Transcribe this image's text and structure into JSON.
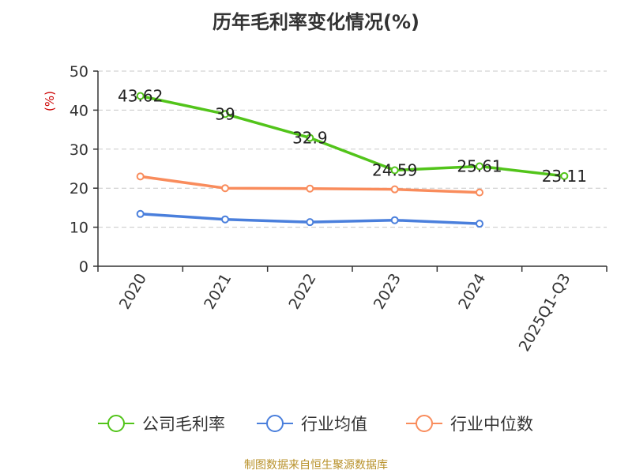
{
  "chart_data": {
    "type": "line",
    "title": "历年毛利率变化情况(%)",
    "ylabel": "(%)",
    "categories": [
      "2020",
      "2021",
      "2022",
      "2023",
      "2024",
      "2025Q1-Q3"
    ],
    "ylim": [
      0,
      50
    ],
    "yticks": [
      0,
      10,
      20,
      30,
      40,
      50
    ],
    "grid": true,
    "legend_position": "bottom",
    "series": [
      {
        "name": "公司毛利率",
        "color": "#52c41a",
        "values": [
          43.62,
          39,
          32.9,
          24.59,
          25.61,
          23.11
        ],
        "labels": [
          "43.62",
          "39",
          "32.9",
          "24.59",
          "25.61",
          "23.11"
        ]
      },
      {
        "name": "行业均值",
        "color": "#4a7fdc",
        "values": [
          13.4,
          12.0,
          11.3,
          11.8,
          10.9,
          null
        ]
      },
      {
        "name": "行业中位数",
        "color": "#f98c5c",
        "values": [
          23.0,
          20.0,
          19.9,
          19.7,
          18.9,
          null
        ]
      }
    ]
  },
  "source": "制图数据来自恒生聚源数据库"
}
